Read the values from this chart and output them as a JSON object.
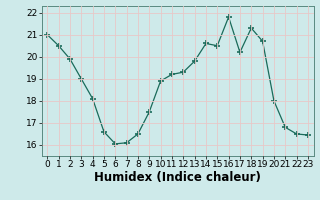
{
  "x": [
    0,
    1,
    2,
    3,
    4,
    5,
    6,
    7,
    8,
    9,
    10,
    11,
    12,
    13,
    14,
    15,
    16,
    17,
    18,
    19,
    20,
    21,
    22,
    23
  ],
  "y": [
    21.0,
    20.5,
    19.9,
    19.0,
    18.1,
    16.6,
    16.05,
    16.1,
    16.5,
    17.5,
    18.9,
    19.2,
    19.3,
    19.8,
    20.6,
    20.5,
    21.8,
    20.2,
    21.3,
    20.7,
    18.0,
    16.8,
    16.5,
    16.45
  ],
  "xlabel": "Humidex (Indice chaleur)",
  "xlim": [
    -0.5,
    23.5
  ],
  "ylim": [
    15.5,
    22.3
  ],
  "yticks": [
    16,
    17,
    18,
    19,
    20,
    21,
    22
  ],
  "xticks": [
    0,
    1,
    2,
    3,
    4,
    5,
    6,
    7,
    8,
    9,
    10,
    11,
    12,
    13,
    14,
    15,
    16,
    17,
    18,
    19,
    20,
    21,
    22,
    23
  ],
  "line_color": "#1a6b5a",
  "marker": "+",
  "marker_size": 4,
  "bg_color": "#ceeaea",
  "grid_color": "#e8c8c8",
  "tick_label_fontsize": 6.5,
  "xlabel_fontsize": 8.5
}
